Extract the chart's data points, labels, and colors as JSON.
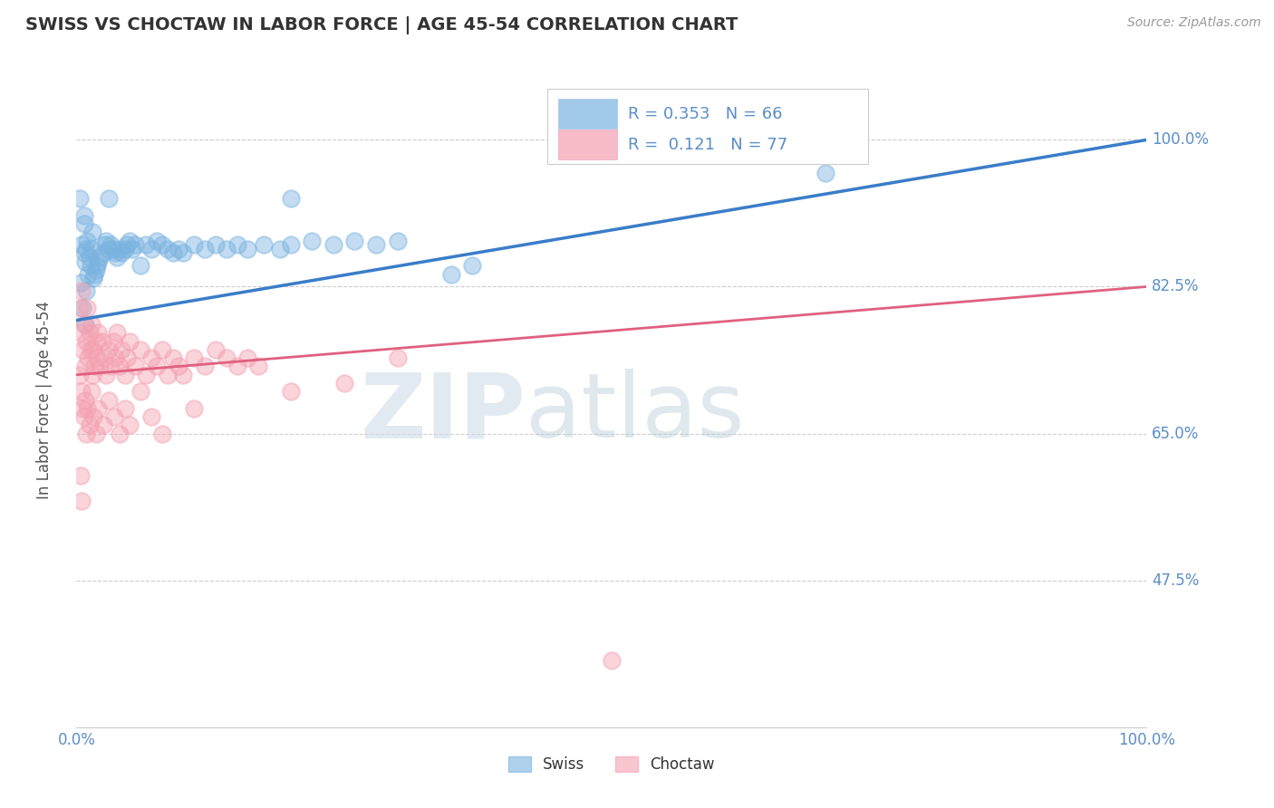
{
  "title": "SWISS VS CHOCTAW IN LABOR FORCE | AGE 45-54 CORRELATION CHART",
  "source_text": "Source: ZipAtlas.com",
  "ylabel": "In Labor Force | Age 45-54",
  "xlim": [
    0,
    1.0
  ],
  "ylim": [
    0.3,
    1.08
  ],
  "yticks": [
    0.475,
    0.65,
    0.825,
    1.0
  ],
  "ytick_labels": [
    "47.5%",
    "65.0%",
    "82.5%",
    "100.0%"
  ],
  "xtick_labels": [
    "0.0%",
    "100.0%"
  ],
  "swiss_R": 0.353,
  "swiss_N": 66,
  "choctaw_R": 0.121,
  "choctaw_N": 77,
  "swiss_color": "#7ab3e0",
  "choctaw_color": "#f4a0b0",
  "swiss_line_color": "#3a7dc9",
  "choctaw_line_color": "#e06080",
  "grid_color": "#cccccc",
  "title_color": "#333333",
  "axis_label_color": "#5a8ec8",
  "swiss_points": [
    [
      0.005,
      0.875
    ],
    [
      0.007,
      0.865
    ],
    [
      0.008,
      0.855
    ],
    [
      0.009,
      0.87
    ],
    [
      0.01,
      0.88
    ],
    [
      0.011,
      0.84
    ],
    [
      0.012,
      0.86
    ],
    [
      0.013,
      0.85
    ],
    [
      0.014,
      0.87
    ],
    [
      0.015,
      0.89
    ],
    [
      0.016,
      0.835
    ],
    [
      0.017,
      0.84
    ],
    [
      0.018,
      0.845
    ],
    [
      0.019,
      0.85
    ],
    [
      0.02,
      0.855
    ],
    [
      0.022,
      0.86
    ],
    [
      0.025,
      0.865
    ],
    [
      0.027,
      0.875
    ],
    [
      0.028,
      0.88
    ],
    [
      0.03,
      0.87
    ],
    [
      0.032,
      0.875
    ],
    [
      0.034,
      0.87
    ],
    [
      0.036,
      0.865
    ],
    [
      0.038,
      0.86
    ],
    [
      0.04,
      0.87
    ],
    [
      0.042,
      0.865
    ],
    [
      0.045,
      0.87
    ],
    [
      0.047,
      0.875
    ],
    [
      0.05,
      0.88
    ],
    [
      0.052,
      0.87
    ],
    [
      0.055,
      0.875
    ],
    [
      0.06,
      0.85
    ],
    [
      0.065,
      0.875
    ],
    [
      0.07,
      0.87
    ],
    [
      0.075,
      0.88
    ],
    [
      0.08,
      0.875
    ],
    [
      0.085,
      0.87
    ],
    [
      0.09,
      0.865
    ],
    [
      0.095,
      0.87
    ],
    [
      0.1,
      0.865
    ],
    [
      0.11,
      0.875
    ],
    [
      0.12,
      0.87
    ],
    [
      0.13,
      0.875
    ],
    [
      0.14,
      0.87
    ],
    [
      0.15,
      0.875
    ],
    [
      0.16,
      0.87
    ],
    [
      0.175,
      0.875
    ],
    [
      0.19,
      0.87
    ],
    [
      0.2,
      0.875
    ],
    [
      0.22,
      0.88
    ],
    [
      0.24,
      0.875
    ],
    [
      0.26,
      0.88
    ],
    [
      0.28,
      0.875
    ],
    [
      0.3,
      0.88
    ],
    [
      0.003,
      0.93
    ],
    [
      0.007,
      0.91
    ],
    [
      0.007,
      0.9
    ],
    [
      0.03,
      0.93
    ],
    [
      0.2,
      0.93
    ],
    [
      0.35,
      0.84
    ],
    [
      0.37,
      0.85
    ],
    [
      0.004,
      0.83
    ],
    [
      0.006,
      0.8
    ],
    [
      0.008,
      0.78
    ],
    [
      0.009,
      0.82
    ],
    [
      0.7,
      0.96
    ]
  ],
  "choctaw_points": [
    [
      0.003,
      0.8
    ],
    [
      0.004,
      0.77
    ],
    [
      0.005,
      0.82
    ],
    [
      0.006,
      0.75
    ],
    [
      0.007,
      0.78
    ],
    [
      0.008,
      0.73
    ],
    [
      0.009,
      0.76
    ],
    [
      0.01,
      0.8
    ],
    [
      0.011,
      0.74
    ],
    [
      0.012,
      0.77
    ],
    [
      0.013,
      0.75
    ],
    [
      0.014,
      0.78
    ],
    [
      0.015,
      0.72
    ],
    [
      0.016,
      0.75
    ],
    [
      0.017,
      0.73
    ],
    [
      0.018,
      0.76
    ],
    [
      0.019,
      0.74
    ],
    [
      0.02,
      0.77
    ],
    [
      0.022,
      0.73
    ],
    [
      0.024,
      0.76
    ],
    [
      0.026,
      0.74
    ],
    [
      0.028,
      0.72
    ],
    [
      0.03,
      0.75
    ],
    [
      0.032,
      0.73
    ],
    [
      0.034,
      0.76
    ],
    [
      0.036,
      0.74
    ],
    [
      0.038,
      0.77
    ],
    [
      0.04,
      0.73
    ],
    [
      0.042,
      0.75
    ],
    [
      0.045,
      0.72
    ],
    [
      0.047,
      0.74
    ],
    [
      0.05,
      0.76
    ],
    [
      0.055,
      0.73
    ],
    [
      0.06,
      0.75
    ],
    [
      0.065,
      0.72
    ],
    [
      0.07,
      0.74
    ],
    [
      0.075,
      0.73
    ],
    [
      0.08,
      0.75
    ],
    [
      0.085,
      0.72
    ],
    [
      0.09,
      0.74
    ],
    [
      0.095,
      0.73
    ],
    [
      0.1,
      0.72
    ],
    [
      0.11,
      0.74
    ],
    [
      0.12,
      0.73
    ],
    [
      0.13,
      0.75
    ],
    [
      0.14,
      0.74
    ],
    [
      0.15,
      0.73
    ],
    [
      0.16,
      0.74
    ],
    [
      0.17,
      0.73
    ],
    [
      0.003,
      0.72
    ],
    [
      0.005,
      0.7
    ],
    [
      0.006,
      0.68
    ],
    [
      0.007,
      0.67
    ],
    [
      0.008,
      0.69
    ],
    [
      0.009,
      0.65
    ],
    [
      0.01,
      0.68
    ],
    [
      0.012,
      0.66
    ],
    [
      0.014,
      0.7
    ],
    [
      0.016,
      0.67
    ],
    [
      0.018,
      0.65
    ],
    [
      0.02,
      0.68
    ],
    [
      0.025,
      0.66
    ],
    [
      0.03,
      0.69
    ],
    [
      0.035,
      0.67
    ],
    [
      0.04,
      0.65
    ],
    [
      0.045,
      0.68
    ],
    [
      0.05,
      0.66
    ],
    [
      0.06,
      0.7
    ],
    [
      0.07,
      0.67
    ],
    [
      0.08,
      0.65
    ],
    [
      0.11,
      0.68
    ],
    [
      0.2,
      0.7
    ],
    [
      0.25,
      0.71
    ],
    [
      0.3,
      0.74
    ],
    [
      0.004,
      0.6
    ],
    [
      0.005,
      0.57
    ],
    [
      0.5,
      0.38
    ]
  ]
}
